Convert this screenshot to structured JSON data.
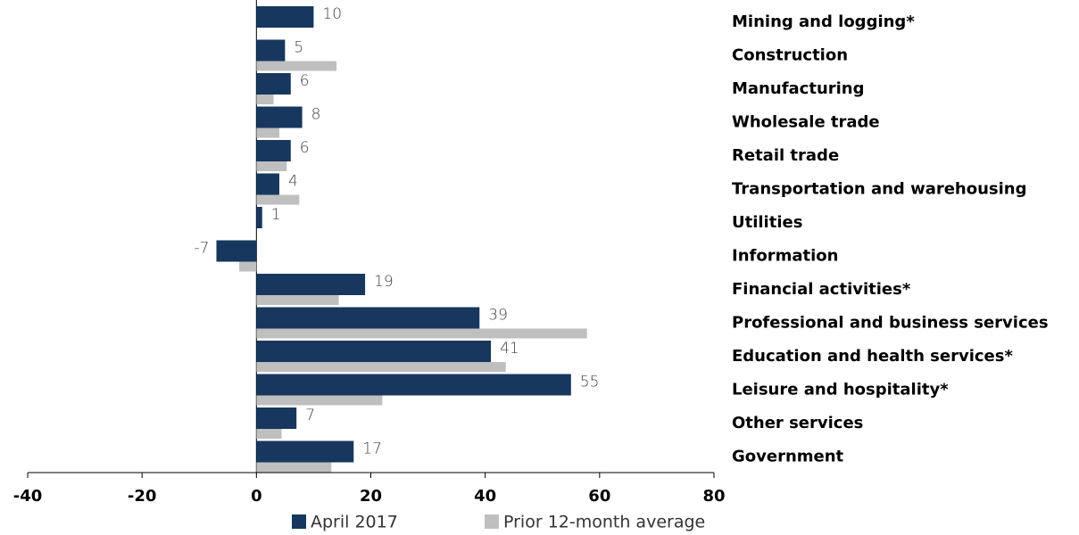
{
  "chart_data": {
    "type": "bar",
    "orientation": "horizontal",
    "categories": [
      "Mining and logging*",
      "Construction",
      "Manufacturing",
      "Wholesale trade",
      "Retail trade",
      "Transportation and warehousing",
      "Utilities",
      "Information",
      "Financial activities*",
      "Professional and business services",
      "Education and health services*",
      "Leisure and hospitality*",
      "Other services",
      "Government"
    ],
    "series": [
      {
        "name": "April 2017",
        "color": "#17375e",
        "values": [
          10,
          5,
          6,
          8,
          6,
          4,
          1,
          -7,
          19,
          39,
          41,
          55,
          7,
          17
        ]
      },
      {
        "name": "Prior 12-month average",
        "color": "#bfbfbf",
        "values": [
          null,
          14,
          3,
          4,
          5.3,
          7.5,
          null,
          -3,
          14.4,
          57.8,
          43.6,
          22,
          4.4,
          13.1
        ]
      }
    ],
    "xlim": [
      -40,
      80
    ],
    "xticks": [
      -40,
      -20,
      0,
      20,
      40,
      60,
      80
    ],
    "legend": "bottom"
  }
}
